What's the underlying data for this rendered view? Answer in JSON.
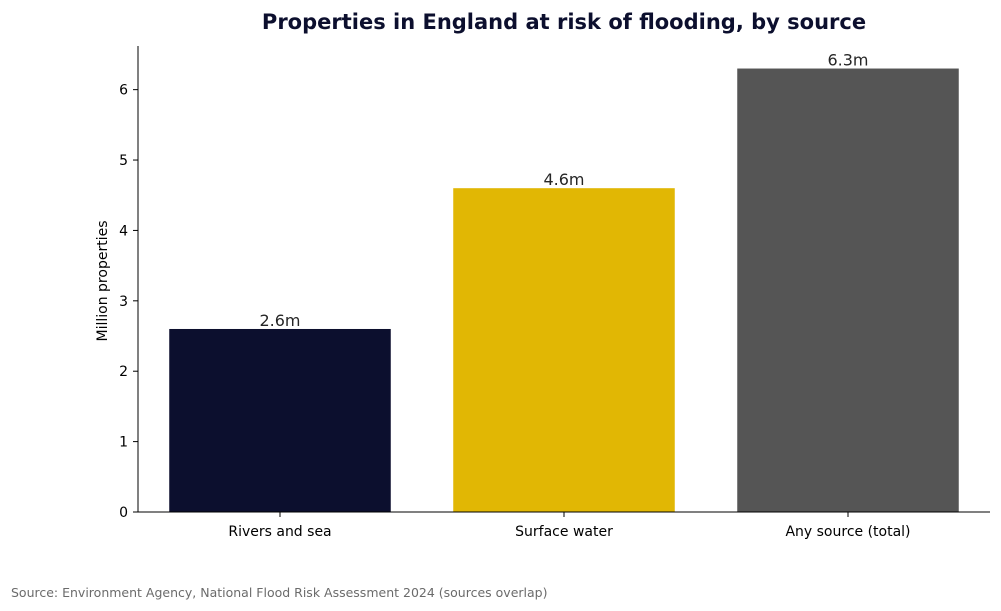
{
  "chart_data": {
    "type": "bar",
    "title": "Properties in England at risk of flooding, by source",
    "xlabel": "",
    "ylabel": "Million properties",
    "categories": [
      "Rivers and sea",
      "Surface water",
      "Any source (total)"
    ],
    "values": [
      2.6,
      4.6,
      6.3
    ],
    "data_labels": [
      "2.6m",
      "4.6m",
      "6.3m"
    ],
    "colors": [
      "#0c0f2e",
      "#e1b704",
      "#555555"
    ],
    "ylim": [
      0,
      6.62
    ],
    "yticks": [
      0,
      1,
      2,
      3,
      4,
      5,
      6
    ],
    "grid": false,
    "legend": "none"
  },
  "footer": {
    "source": "Source: Environment Agency, National Flood Risk Assessment 2024 (sources overlap)"
  }
}
